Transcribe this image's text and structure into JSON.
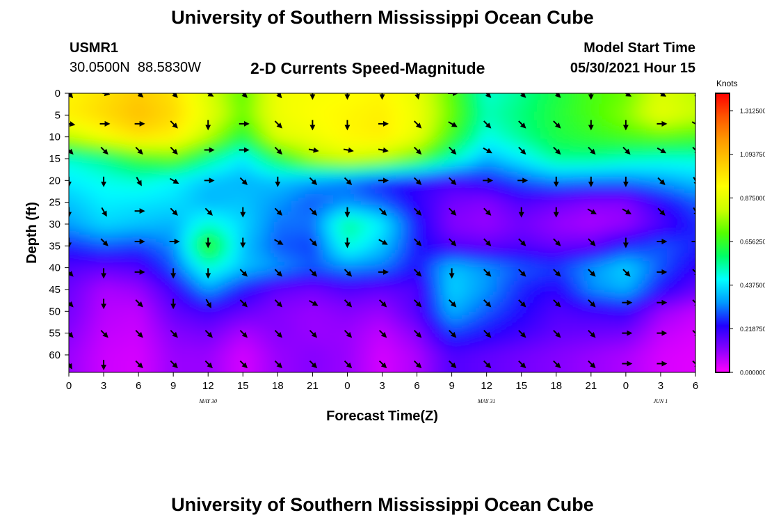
{
  "header": {
    "title": "University of Southern Mississippi Ocean Cube",
    "station_id": "USMR1",
    "station_coords": "30.0500N  88.5830W",
    "product": "2-D Currents Speed-Magnitude",
    "start_label": "Model Start Time",
    "start_value": "05/30/2021 Hour 15"
  },
  "footer": {
    "title": "University of Southern Mississippi Ocean Cube"
  },
  "chart_data": {
    "type": "heatmap",
    "xlabel": "Forecast Time(Z)",
    "ylabel": "Depth (ft)",
    "x_tick_labels": [
      "0",
      "3",
      "6",
      "9",
      "12",
      "15",
      "18",
      "21",
      "0",
      "3",
      "6",
      "9",
      "12",
      "15",
      "18",
      "21",
      "0",
      "3",
      "6"
    ],
    "date_labels": [
      {
        "text": "MAY 30",
        "tick_index": 4
      },
      {
        "text": "MAY 31",
        "tick_index": 12
      },
      {
        "text": "JUN 1",
        "tick_index": 17
      }
    ],
    "y_tick_labels": [
      "0",
      "5",
      "10",
      "15",
      "20",
      "25",
      "30",
      "35",
      "40",
      "45",
      "50",
      "55",
      "60"
    ],
    "ylim": [
      0,
      64
    ],
    "colorbar": {
      "unit": "Knots",
      "range": [
        0,
        1.4
      ],
      "tick_values": [
        0,
        0.21875,
        0.4375,
        0.65625,
        0.875,
        1.09375,
        1.3125
      ],
      "tick_labels": [
        "0.000000",
        "0.218750",
        "0.437500",
        "0.656250",
        "0.875000",
        "1.093750",
        "1.312500"
      ],
      "colors": [
        "#ff00ff",
        "#8800ff",
        "#2200ff",
        "#0099ff",
        "#00ffff",
        "#00ff66",
        "#55ff00",
        "#ccff00",
        "#ffff00",
        "#ffcc00",
        "#ff9900",
        "#ff5500",
        "#ff0000"
      ]
    },
    "speed_grid": {
      "hours": [
        0,
        3,
        6,
        9,
        12,
        15,
        18,
        21,
        24,
        27,
        30,
        33,
        36,
        39,
        42,
        45,
        48,
        51,
        54
      ],
      "depths": [
        0,
        5,
        10,
        15,
        20,
        25,
        30,
        35,
        40,
        45,
        50,
        55,
        60,
        64
      ],
      "values": [
        [
          0.95,
          1.0,
          1.05,
          1.0,
          0.85,
          0.7,
          0.9,
          0.92,
          0.93,
          0.95,
          0.88,
          0.7,
          0.5,
          0.55,
          0.62,
          0.68,
          0.72,
          0.85,
          0.8
        ],
        [
          0.97,
          1.02,
          1.08,
          1.02,
          0.88,
          0.72,
          0.9,
          0.93,
          0.95,
          0.97,
          0.9,
          0.72,
          0.52,
          0.57,
          0.63,
          0.68,
          0.75,
          0.88,
          0.82
        ],
        [
          0.82,
          0.92,
          1.0,
          0.96,
          0.8,
          0.62,
          0.86,
          0.9,
          0.95,
          0.97,
          0.88,
          0.66,
          0.48,
          0.55,
          0.62,
          0.65,
          0.68,
          0.7,
          0.68
        ],
        [
          0.5,
          0.55,
          0.65,
          0.7,
          0.56,
          0.44,
          0.62,
          0.78,
          0.85,
          0.8,
          0.7,
          0.52,
          0.38,
          0.45,
          0.55,
          0.55,
          0.52,
          0.5,
          0.5
        ],
        [
          0.45,
          0.48,
          0.5,
          0.46,
          0.4,
          0.38,
          0.4,
          0.36,
          0.32,
          0.26,
          0.22,
          0.2,
          0.24,
          0.3,
          0.34,
          0.33,
          0.33,
          0.36,
          0.4
        ],
        [
          0.4,
          0.45,
          0.44,
          0.43,
          0.38,
          0.4,
          0.35,
          0.3,
          0.34,
          0.3,
          0.22,
          0.14,
          0.12,
          0.18,
          0.15,
          0.12,
          0.12,
          0.22,
          0.3
        ],
        [
          0.36,
          0.42,
          0.4,
          0.38,
          0.5,
          0.42,
          0.32,
          0.32,
          0.56,
          0.45,
          0.25,
          0.12,
          0.1,
          0.14,
          0.1,
          0.08,
          0.1,
          0.18,
          0.26
        ],
        [
          0.26,
          0.3,
          0.28,
          0.34,
          0.68,
          0.4,
          0.3,
          0.28,
          0.5,
          0.4,
          0.25,
          0.18,
          0.16,
          0.18,
          0.15,
          0.16,
          0.25,
          0.3,
          0.26
        ],
        [
          0.18,
          0.16,
          0.18,
          0.3,
          0.5,
          0.4,
          0.35,
          0.3,
          0.34,
          0.32,
          0.24,
          0.4,
          0.35,
          0.3,
          0.28,
          0.35,
          0.42,
          0.3,
          0.22
        ],
        [
          0.15,
          0.08,
          0.1,
          0.2,
          0.36,
          0.24,
          0.16,
          0.14,
          0.18,
          0.16,
          0.18,
          0.42,
          0.35,
          0.26,
          0.22,
          0.34,
          0.38,
          0.24,
          0.16
        ],
        [
          0.14,
          0.07,
          0.06,
          0.16,
          0.2,
          0.16,
          0.12,
          0.1,
          0.12,
          0.1,
          0.18,
          0.38,
          0.3,
          0.24,
          0.18,
          0.2,
          0.22,
          0.1,
          0.06
        ],
        [
          0.12,
          0.06,
          0.05,
          0.12,
          0.14,
          0.08,
          0.12,
          0.1,
          0.1,
          0.06,
          0.12,
          0.28,
          0.24,
          0.2,
          0.16,
          0.15,
          0.14,
          0.06,
          0.04
        ],
        [
          0.1,
          0.05,
          0.04,
          0.1,
          0.1,
          0.04,
          0.1,
          0.12,
          0.1,
          0.04,
          0.08,
          0.18,
          0.16,
          0.14,
          0.12,
          0.1,
          0.08,
          0.04,
          0.03
        ],
        [
          0.1,
          0.05,
          0.04,
          0.1,
          0.1,
          0.04,
          0.1,
          0.12,
          0.1,
          0.04,
          0.08,
          0.18,
          0.16,
          0.14,
          0.12,
          0.1,
          0.08,
          0.04,
          0.03
        ]
      ]
    },
    "vector_rows": [
      {
        "depth": 0,
        "angles": [
          40,
          80,
          50,
          45,
          60,
          45,
          40,
          0,
          0,
          0,
          15,
          90,
          45,
          45,
          45,
          0,
          60,
          60,
          45
        ]
      },
      {
        "depth": 7,
        "angles": [
          80,
          90,
          90,
          45,
          0,
          90,
          45,
          0,
          0,
          90,
          45,
          60,
          45,
          45,
          45,
          0,
          0,
          90,
          60
        ]
      },
      {
        "depth": 13,
        "angles": [
          45,
          45,
          45,
          45,
          90,
          90,
          45,
          80,
          80,
          80,
          45,
          45,
          60,
          45,
          45,
          45,
          45,
          60,
          45
        ]
      },
      {
        "depth": 20,
        "angles": [
          0,
          0,
          30,
          60,
          90,
          45,
          0,
          45,
          45,
          90,
          45,
          45,
          90,
          90,
          0,
          0,
          0,
          45,
          30
        ]
      },
      {
        "depth": 27,
        "angles": [
          0,
          30,
          90,
          45,
          45,
          0,
          45,
          45,
          0,
          45,
          45,
          45,
          45,
          0,
          0,
          60,
          60,
          45,
          30
        ]
      },
      {
        "depth": 34,
        "angles": [
          0,
          45,
          90,
          90,
          0,
          0,
          60,
          45,
          0,
          60,
          45,
          45,
          45,
          45,
          45,
          45,
          0,
          90,
          90
        ]
      },
      {
        "depth": 41,
        "angles": [
          45,
          0,
          90,
          0,
          0,
          45,
          45,
          45,
          45,
          90,
          45,
          0,
          45,
          45,
          45,
          45,
          45,
          90,
          45
        ]
      },
      {
        "depth": 48,
        "angles": [
          45,
          0,
          45,
          0,
          30,
          45,
          45,
          60,
          45,
          45,
          45,
          45,
          45,
          45,
          45,
          45,
          90,
          90,
          45
        ]
      },
      {
        "depth": 55,
        "angles": [
          45,
          45,
          45,
          45,
          45,
          45,
          45,
          45,
          45,
          45,
          45,
          45,
          45,
          45,
          45,
          45,
          90,
          90,
          45
        ]
      },
      {
        "depth": 62,
        "angles": [
          30,
          0,
          45,
          45,
          45,
          45,
          45,
          45,
          45,
          45,
          45,
          45,
          45,
          45,
          45,
          45,
          90,
          90,
          45
        ]
      }
    ]
  }
}
